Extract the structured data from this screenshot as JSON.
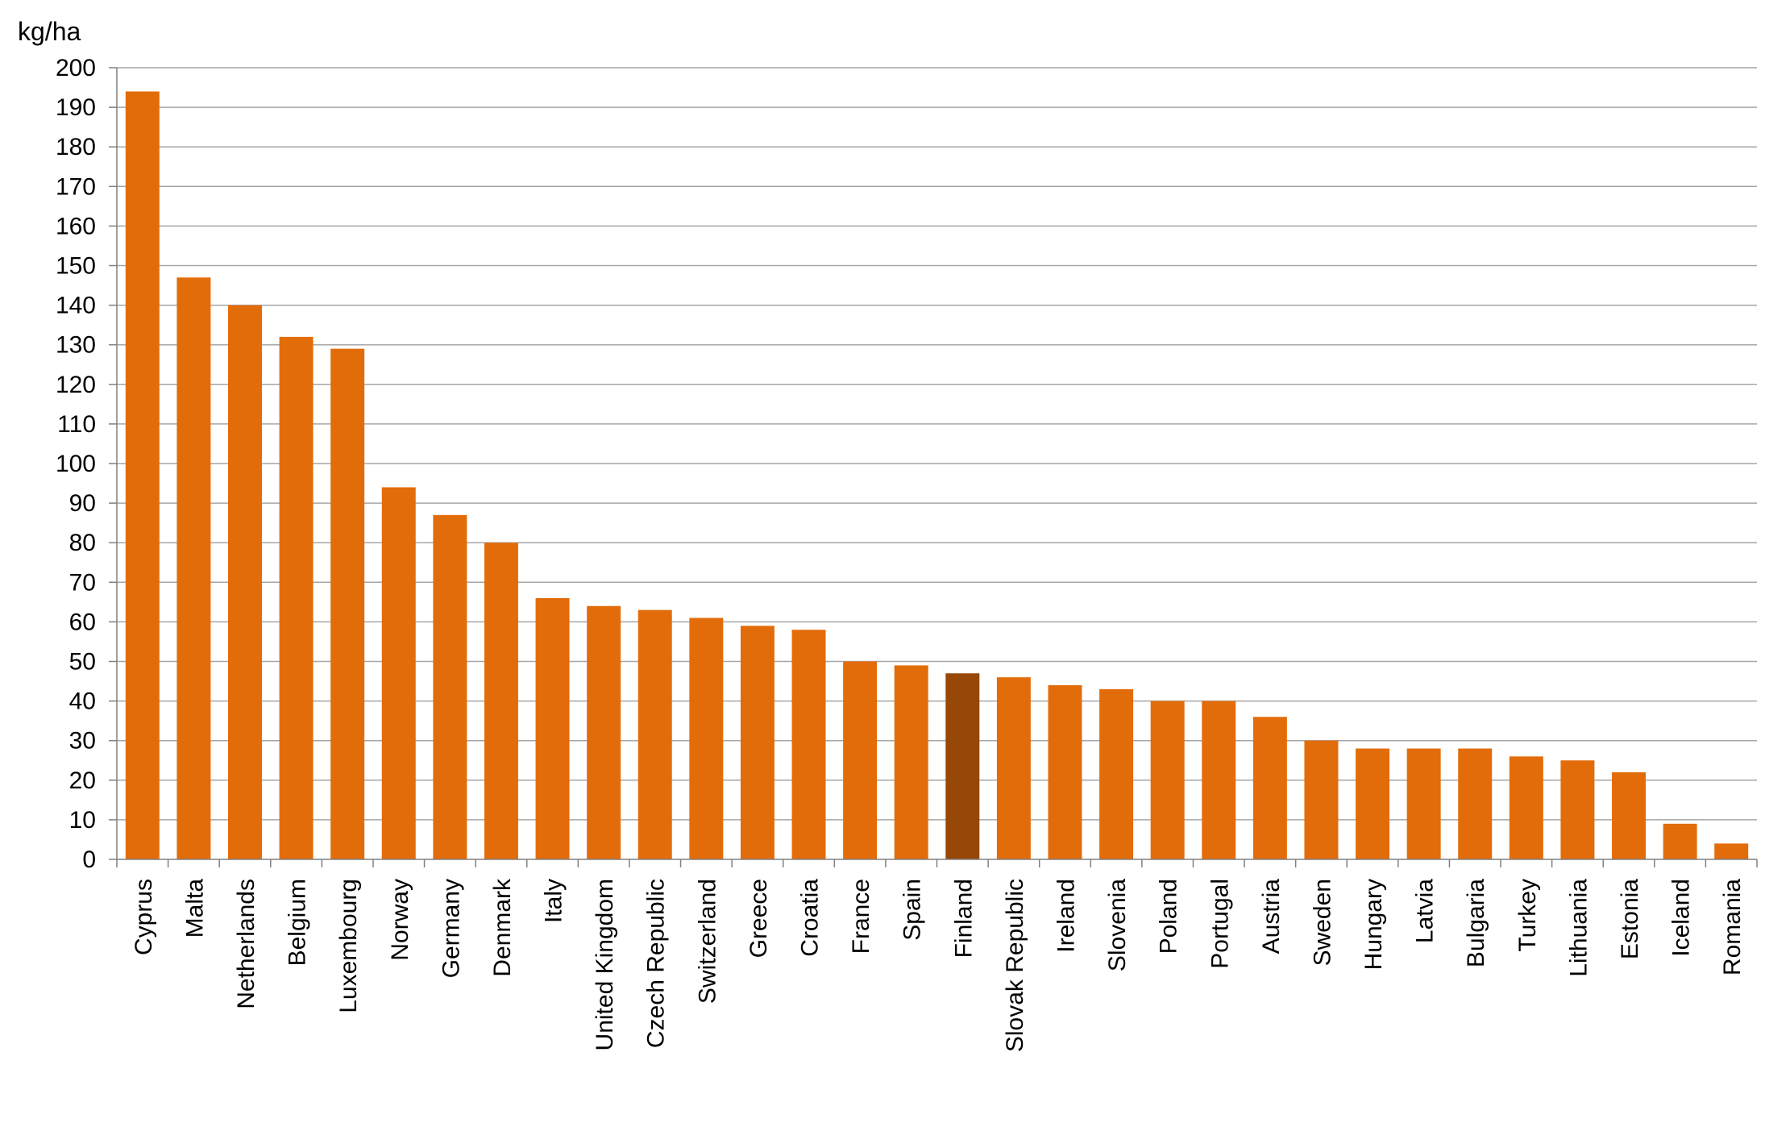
{
  "chart_data": {
    "type": "bar",
    "ylabel": "kg/ha",
    "ylim": [
      0,
      200
    ],
    "yticks": [
      0,
      10,
      20,
      30,
      40,
      50,
      60,
      70,
      80,
      90,
      100,
      110,
      120,
      130,
      140,
      150,
      160,
      170,
      180,
      190,
      200
    ],
    "grid": true,
    "categories": [
      "Cyprus",
      "Malta",
      "Netherlands",
      "Belgium",
      "Luxembourg",
      "Norway",
      "Germany",
      "Denmark",
      "Italy",
      "United Kingdom",
      "Czech Republic",
      "Switzerland",
      "Greece",
      "Croatia",
      "France",
      "Spain",
      "Finland",
      "Slovak Republic",
      "Ireland",
      "Slovenia",
      "Poland",
      "Portugal",
      "Austria",
      "Sweden",
      "Hungary",
      "Latvia",
      "Bulgaria",
      "Turkey",
      "Lithuania",
      "Estonia",
      "Iceland",
      "Romania"
    ],
    "values": [
      194,
      147,
      140,
      132,
      129,
      94,
      87,
      80,
      66,
      64,
      63,
      61,
      59,
      58,
      50,
      49,
      47,
      46,
      44,
      43,
      40,
      40,
      36,
      30,
      28,
      28,
      28,
      26,
      25,
      22,
      9,
      4
    ],
    "highlight_category": "Finland",
    "colors": {
      "bar": "#E36C0A",
      "highlight": "#974806",
      "grid": "#A6A6A6",
      "axis": "#808080"
    }
  }
}
